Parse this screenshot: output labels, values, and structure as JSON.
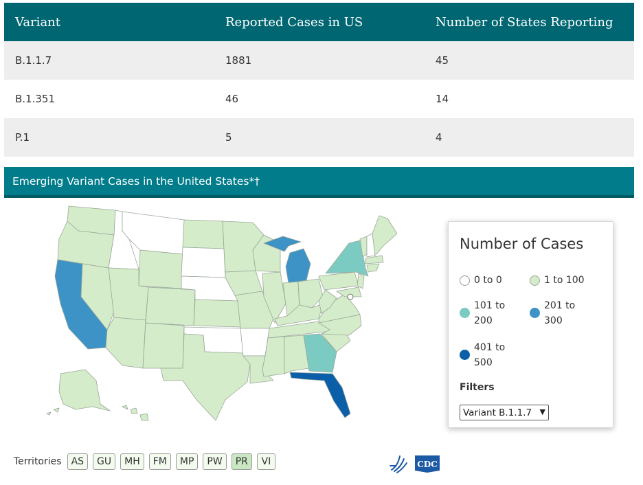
{
  "table": {
    "headers": [
      "Variant",
      "Reported Cases in US",
      "Number of States Reporting"
    ],
    "rows": [
      [
        "B.1.1.7",
        "1881",
        "45"
      ],
      [
        "B.1.351",
        "46",
        "14"
      ],
      [
        "P.1",
        "5",
        "4"
      ]
    ]
  },
  "map": {
    "title": "Emerging Variant Cases in the United States*†",
    "colors": {
      "range_0": "#ffffff",
      "range_1_100": "#d4ecc9",
      "range_101_200": "#7ccbc3",
      "range_201_300": "#3d93c6",
      "range_401_500": "#0a5fa8",
      "border": "#9aa79a"
    }
  },
  "legend": {
    "title": "Number of Cases",
    "items": [
      {
        "label": "0 to 0",
        "color": "#ffffff"
      },
      {
        "label": "1 to 100",
        "color": "#d4ecc9"
      },
      {
        "label": "101 to 200",
        "color": "#7ccbc3"
      },
      {
        "label": "201 to 300",
        "color": "#3d93c6"
      },
      {
        "label": "401 to 500",
        "color": "#0a5fa8"
      }
    ],
    "filters_label": "Filters",
    "filter_value": "Variant B.1.1.7"
  },
  "territories": {
    "label": "Territories",
    "items": [
      "AS",
      "GU",
      "MH",
      "FM",
      "MP",
      "PW",
      "PR",
      "VI"
    ]
  },
  "footer": {
    "cdc_logo_text": "CDC",
    "hhs_logo": "hhs-eagle-icon"
  }
}
